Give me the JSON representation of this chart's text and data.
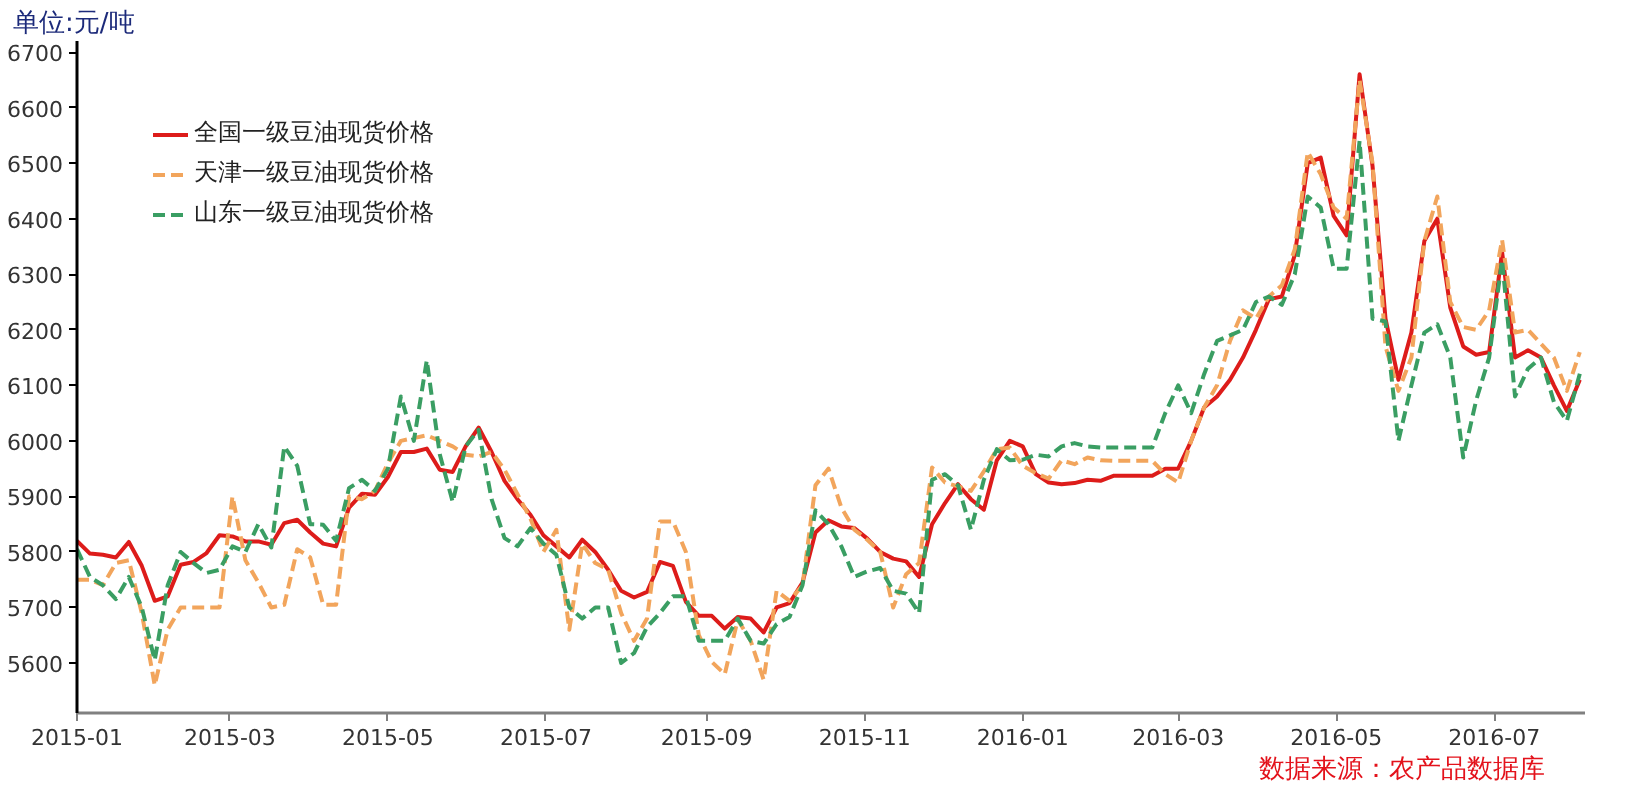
{
  "chart_data": {
    "type": "line",
    "ylabel": "单位:元/吨",
    "annotations": [
      "数据来源：农产品数据库"
    ],
    "x": [
      "2015-01-01",
      "2015-01-06",
      "2015-01-11",
      "2015-01-16",
      "2015-01-21",
      "2015-01-26",
      "2015-01-31",
      "2015-02-05",
      "2015-02-10",
      "2015-02-15",
      "2015-02-20",
      "2015-02-25",
      "2015-03-02",
      "2015-03-07",
      "2015-03-12",
      "2015-03-17",
      "2015-03-22",
      "2015-03-27",
      "2015-04-01",
      "2015-04-06",
      "2015-04-11",
      "2015-04-16",
      "2015-04-21",
      "2015-04-26",
      "2015-05-01",
      "2015-05-06",
      "2015-05-11",
      "2015-05-16",
      "2015-05-21",
      "2015-05-26",
      "2015-05-31",
      "2015-06-05",
      "2015-06-10",
      "2015-06-15",
      "2015-06-20",
      "2015-06-25",
      "2015-06-30",
      "2015-07-05",
      "2015-07-10",
      "2015-07-15",
      "2015-07-20",
      "2015-07-25",
      "2015-07-30",
      "2015-08-04",
      "2015-08-09",
      "2015-08-14",
      "2015-08-19",
      "2015-08-24",
      "2015-08-29",
      "2015-09-03",
      "2015-09-08",
      "2015-09-13",
      "2015-09-18",
      "2015-09-23",
      "2015-09-28",
      "2015-10-03",
      "2015-10-08",
      "2015-10-13",
      "2015-10-18",
      "2015-10-23",
      "2015-10-28",
      "2015-11-02",
      "2015-11-07",
      "2015-11-12",
      "2015-11-17",
      "2015-11-22",
      "2015-11-27",
      "2015-12-02",
      "2015-12-07",
      "2015-12-12",
      "2015-12-17",
      "2015-12-22",
      "2015-12-27",
      "2016-01-01",
      "2016-01-06",
      "2016-01-11",
      "2016-01-16",
      "2016-01-21",
      "2016-01-26",
      "2016-01-31",
      "2016-02-05",
      "2016-02-10",
      "2016-02-15",
      "2016-02-20",
      "2016-02-25",
      "2016-03-01",
      "2016-03-06",
      "2016-03-11",
      "2016-03-16",
      "2016-03-21",
      "2016-03-26",
      "2016-03-31",
      "2016-04-05",
      "2016-04-10",
      "2016-04-15",
      "2016-04-20",
      "2016-04-25",
      "2016-04-30",
      "2016-05-05",
      "2016-05-10",
      "2016-05-15",
      "2016-05-20",
      "2016-05-25",
      "2016-05-30",
      "2016-06-04",
      "2016-06-09",
      "2016-06-14",
      "2016-06-19",
      "2016-06-24",
      "2016-06-29",
      "2016-07-04",
      "2016-07-09",
      "2016-07-14",
      "2016-07-19",
      "2016-07-24",
      "2016-07-29",
      "2016-08-03"
    ],
    "series": [
      {
        "name": "全国一级豆油现货价格",
        "color": "#dd1c1a",
        "line_style": "solid",
        "values": [
          5820,
          5797,
          5795,
          5790,
          5818,
          5775,
          5712,
          5720,
          5777,
          5782,
          5798,
          5830,
          5828,
          5819,
          5819,
          5813,
          5852,
          5858,
          5835,
          5815,
          5810,
          5880,
          5905,
          5903,
          5935,
          5980,
          5980,
          5986,
          5948,
          5944,
          5990,
          6024,
          5980,
          5928,
          5895,
          5867,
          5830,
          5810,
          5790,
          5822,
          5800,
          5768,
          5730,
          5718,
          5728,
          5782,
          5775,
          5710,
          5685,
          5685,
          5662,
          5683,
          5680,
          5655,
          5700,
          5708,
          5745,
          5835,
          5857,
          5846,
          5843,
          5824,
          5800,
          5788,
          5783,
          5755,
          5850,
          5888,
          5922,
          5895,
          5876,
          5965,
          6000,
          5990,
          5940,
          5925,
          5922,
          5924,
          5930,
          5928,
          5937,
          5937,
          5937,
          5937,
          5950,
          5950,
          6000,
          6060,
          6080,
          6110,
          6150,
          6200,
          6255,
          6260,
          6335,
          6500,
          6510,
          6405,
          6370,
          6660,
          6495,
          6220,
          6110,
          6195,
          6360,
          6400,
          6240,
          6170,
          6155,
          6160,
          6340,
          6150,
          6163,
          6150,
          6100,
          6054,
          6110
        ]
      },
      {
        "name": "天津一级豆油现货价格",
        "color": "#f2a55c",
        "line_style": "dashed",
        "values": [
          5750,
          5750,
          5740,
          5780,
          5785,
          5690,
          5560,
          5660,
          5700,
          5700,
          5700,
          5700,
          5900,
          5785,
          5745,
          5700,
          5705,
          5805,
          5790,
          5705,
          5705,
          5900,
          5895,
          5910,
          5960,
          6000,
          6005,
          6010,
          6000,
          5990,
          5975,
          5972,
          5980,
          5948,
          5904,
          5860,
          5800,
          5840,
          5660,
          5815,
          5780,
          5768,
          5690,
          5640,
          5680,
          5855,
          5855,
          5800,
          5650,
          5602,
          5580,
          5678,
          5640,
          5570,
          5730,
          5712,
          5740,
          5920,
          5950,
          5880,
          5840,
          5822,
          5800,
          5700,
          5760,
          5780,
          5952,
          5925,
          5918,
          5910,
          5945,
          5985,
          5988,
          5955,
          5942,
          5932,
          5965,
          5958,
          5970,
          5965,
          5964,
          5964,
          5964,
          5964,
          5940,
          5925,
          6000,
          6060,
          6100,
          6180,
          6235,
          6220,
          6260,
          6280,
          6345,
          6520,
          6480,
          6420,
          6400,
          6650,
          6500,
          6170,
          6090,
          6150,
          6360,
          6440,
          6250,
          6205,
          6200,
          6235,
          6362,
          6195,
          6200,
          6175,
          6150,
          6090,
          6160
        ]
      },
      {
        "name": "山东一级豆油现货价格",
        "color": "#3a9e63",
        "line_style": "dashed",
        "values": [
          5805,
          5755,
          5740,
          5715,
          5755,
          5700,
          5605,
          5740,
          5800,
          5780,
          5762,
          5768,
          5810,
          5800,
          5850,
          5808,
          5990,
          5955,
          5850,
          5849,
          5820,
          5915,
          5930,
          5910,
          5950,
          6080,
          6000,
          6145,
          5976,
          5890,
          5990,
          6020,
          5895,
          5825,
          5810,
          5843,
          5815,
          5795,
          5700,
          5680,
          5700,
          5700,
          5600,
          5618,
          5665,
          5690,
          5720,
          5720,
          5640,
          5640,
          5640,
          5680,
          5640,
          5635,
          5670,
          5683,
          5740,
          5875,
          5850,
          5810,
          5755,
          5765,
          5771,
          5730,
          5725,
          5690,
          5930,
          5940,
          5920,
          5840,
          5930,
          5985,
          5965,
          5966,
          5975,
          5972,
          5990,
          5996,
          5990,
          5988,
          5988,
          5988,
          5988,
          5988,
          6050,
          6100,
          6050,
          6120,
          6180,
          6190,
          6200,
          6250,
          6260,
          6245,
          6300,
          6440,
          6420,
          6310,
          6310,
          6540,
          6220,
          6215,
          6000,
          6100,
          6195,
          6210,
          6150,
          5970,
          6073,
          6150,
          6326,
          6080,
          6130,
          6150,
          6070,
          6036,
          6121
        ]
      }
    ],
    "xlim": [
      "2015-01-01",
      "2016-08-05"
    ],
    "xticks": [
      "2015-01",
      "2015-03",
      "2015-05",
      "2015-07",
      "2015-09",
      "2015-11",
      "2016-01",
      "2016-03",
      "2016-05",
      "2016-07"
    ],
    "ylim": [
      5510,
      6720
    ],
    "yticks": [
      5600,
      5700,
      5800,
      5900,
      6000,
      6100,
      6200,
      6300,
      6400,
      6500,
      6600,
      6700
    ],
    "grid": false,
    "legend": "top left"
  }
}
